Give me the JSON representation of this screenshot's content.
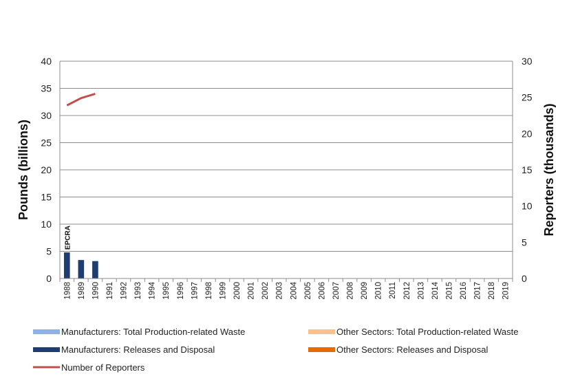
{
  "chart_data": {
    "type": "bar",
    "categories": [
      "1988",
      "1989",
      "1990",
      "1991",
      "1992",
      "1993",
      "1994",
      "1995",
      "1996",
      "1997",
      "1998",
      "1999",
      "2000",
      "2001",
      "2002",
      "2003",
      "2004",
      "2005",
      "2006",
      "2007",
      "2008",
      "2009",
      "2010",
      "2011",
      "2012",
      "2013",
      "2014",
      "2015",
      "2016",
      "2017",
      "2018",
      "2019"
    ],
    "series": [
      {
        "name": "Manufacturers: Total Production-related Waste",
        "kind": "bar",
        "axis": "left",
        "color": "#8db3e2",
        "values": [
          null,
          null,
          null,
          null,
          null,
          null,
          null,
          null,
          null,
          null,
          null,
          null,
          null,
          null,
          null,
          null,
          null,
          null,
          null,
          null,
          null,
          null,
          null,
          null,
          null,
          null,
          null,
          null,
          null,
          null,
          null,
          null
        ]
      },
      {
        "name": "Other Sectors: Total Production-related Waste",
        "kind": "bar",
        "axis": "left",
        "color": "#fac090",
        "values": [
          null,
          null,
          null,
          null,
          null,
          null,
          null,
          null,
          null,
          null,
          null,
          null,
          null,
          null,
          null,
          null,
          null,
          null,
          null,
          null,
          null,
          null,
          null,
          null,
          null,
          null,
          null,
          null,
          null,
          null,
          null,
          null
        ]
      },
      {
        "name": "Manufacturers: Releases and Disposal",
        "kind": "bar",
        "axis": "left",
        "color": "#1f3d6e",
        "values": [
          4.8,
          3.4,
          3.2,
          null,
          null,
          null,
          null,
          null,
          null,
          null,
          null,
          null,
          null,
          null,
          null,
          null,
          null,
          null,
          null,
          null,
          null,
          null,
          null,
          null,
          null,
          null,
          null,
          null,
          null,
          null,
          null,
          null
        ]
      },
      {
        "name": "Other Sectors: Releases and Disposal",
        "kind": "bar",
        "axis": "left",
        "color": "#e36c09",
        "values": [
          null,
          null,
          null,
          null,
          null,
          null,
          null,
          null,
          null,
          null,
          null,
          null,
          null,
          null,
          null,
          null,
          null,
          null,
          null,
          null,
          null,
          null,
          null,
          null,
          null,
          null,
          null,
          null,
          null,
          null,
          null,
          null
        ]
      },
      {
        "name": "Number of Reporters",
        "kind": "line",
        "axis": "right",
        "color": "#c0504d",
        "values": [
          23.9,
          24.9,
          25.5,
          null,
          null,
          null,
          null,
          null,
          null,
          null,
          null,
          null,
          null,
          null,
          null,
          null,
          null,
          null,
          null,
          null,
          null,
          null,
          null,
          null,
          null,
          null,
          null,
          null,
          null,
          null,
          null,
          null
        ]
      }
    ],
    "ylabel": "Pounds (billions)",
    "y2label": "Reporters (thousands)",
    "ylim": [
      0,
      40
    ],
    "yticks": [
      "0",
      "5",
      "10",
      "15",
      "20",
      "25",
      "30",
      "35",
      "40"
    ],
    "y2lim": [
      0,
      30
    ],
    "y2ticks": [
      "0",
      "5",
      "10",
      "15",
      "20",
      "25",
      "30"
    ],
    "annotation": {
      "text": "EPCRA",
      "category": "1988"
    },
    "grid": true,
    "legend_position": "bottom"
  }
}
